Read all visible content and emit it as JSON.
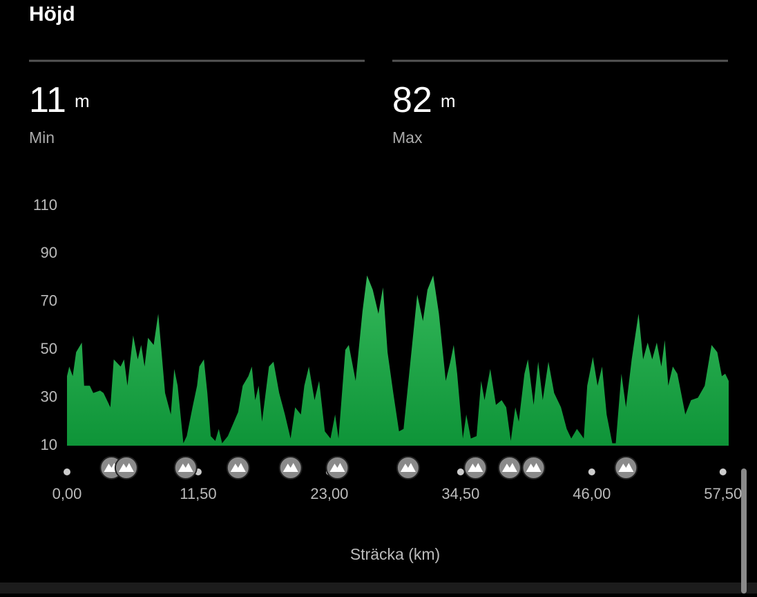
{
  "header": {
    "title": "Höjd"
  },
  "stats": [
    {
      "value": 11,
      "unit": "m",
      "label": "Min"
    },
    {
      "value": 82,
      "unit": "m",
      "label": "Max"
    }
  ],
  "chart_data": {
    "type": "area",
    "x_label": "Sträcka (km)",
    "color": "#34b85a",
    "x": [
      0,
      0.2,
      0.5,
      0.8,
      1.3,
      1.5,
      2.0,
      2.3,
      2.9,
      3.2,
      3.8,
      4.1,
      4.7,
      5.0,
      5.3,
      5.8,
      6.2,
      6.5,
      6.8,
      7.1,
      7.6,
      8.0,
      8.6,
      9.1,
      9.4,
      9.7,
      10.2,
      10.5,
      11.0,
      11.4,
      11.6,
      12.0,
      12.3,
      12.6,
      13.0,
      13.3,
      13.6,
      14.1,
      15.0,
      15.4,
      15.9,
      16.2,
      16.5,
      16.8,
      17.1,
      17.7,
      18.1,
      18.6,
      19.1,
      19.6,
      20.0,
      20.5,
      20.8,
      21.2,
      21.7,
      22.1,
      22.6,
      23.1,
      23.5,
      23.8,
      24.4,
      24.7,
      25.3,
      25.9,
      26.3,
      26.8,
      27.3,
      27.7,
      28.1,
      28.6,
      29.1,
      29.5,
      30.1,
      30.7,
      31.2,
      31.6,
      32.1,
      32.6,
      33.2,
      33.6,
      33.9,
      34.2,
      34.7,
      35.0,
      35.4,
      35.9,
      36.3,
      36.6,
      37.1,
      37.6,
      38.1,
      38.5,
      38.9,
      39.3,
      39.6,
      40.1,
      40.4,
      40.9,
      41.3,
      41.7,
      42.2,
      42.7,
      43.3,
      43.8,
      44.2,
      44.7,
      45.3,
      45.6,
      46.1,
      46.5,
      46.9,
      47.3,
      47.8,
      48.1,
      48.6,
      49.0,
      49.5,
      50.1,
      50.5,
      50.9,
      51.3,
      51.7,
      52.1,
      52.4,
      52.7,
      53.1,
      53.5,
      54.2,
      54.7,
      55.3,
      55.9,
      56.5,
      57.0,
      57.4,
      57.7,
      58.0
    ],
    "values": [
      39,
      43,
      39,
      49,
      53,
      35,
      35,
      32,
      33,
      32,
      26,
      46,
      43,
      46,
      35,
      56,
      46,
      52,
      43,
      55,
      52,
      65,
      32,
      23,
      42,
      35,
      11,
      14,
      26,
      35,
      43,
      46,
      32,
      14,
      12,
      17,
      11,
      14,
      24,
      35,
      39,
      43,
      29,
      35,
      20,
      43,
      45,
      32,
      23,
      13,
      26,
      23,
      35,
      43,
      29,
      37,
      16,
      13,
      23,
      13,
      50,
      52,
      37,
      66,
      81,
      75,
      65,
      76,
      49,
      32,
      16,
      17,
      45,
      73,
      62,
      75,
      81,
      65,
      37,
      45,
      52,
      40,
      13,
      23,
      13,
      14,
      37,
      29,
      42,
      27,
      29,
      26,
      12,
      26,
      20,
      40,
      46,
      27,
      45,
      29,
      45,
      32,
      26,
      17,
      13,
      17,
      13,
      35,
      47,
      35,
      43,
      23,
      11,
      11,
      40,
      26,
      46,
      65,
      46,
      53,
      46,
      53,
      43,
      54,
      35,
      43,
      40,
      23,
      29,
      30,
      35,
      52,
      49,
      39,
      40,
      37
    ],
    "markers": [
      3.9,
      5.2,
      10.4,
      15.0,
      19.6,
      23.7,
      29.9,
      35.8,
      38.8,
      40.9,
      49.0
    ],
    "xlim": [
      0,
      58
    ],
    "xticks": [
      {
        "value": 0,
        "label": "0,00"
      },
      {
        "value": 11.5,
        "label": "11,50"
      },
      {
        "value": 23,
        "label": "23,00"
      },
      {
        "value": 34.5,
        "label": "34,50"
      },
      {
        "value": 46,
        "label": "46,00"
      },
      {
        "value": 57.5,
        "label": "57,50"
      }
    ],
    "ylim": [
      10,
      110
    ],
    "yticks": [
      10,
      30,
      50,
      70,
      90,
      110
    ]
  }
}
